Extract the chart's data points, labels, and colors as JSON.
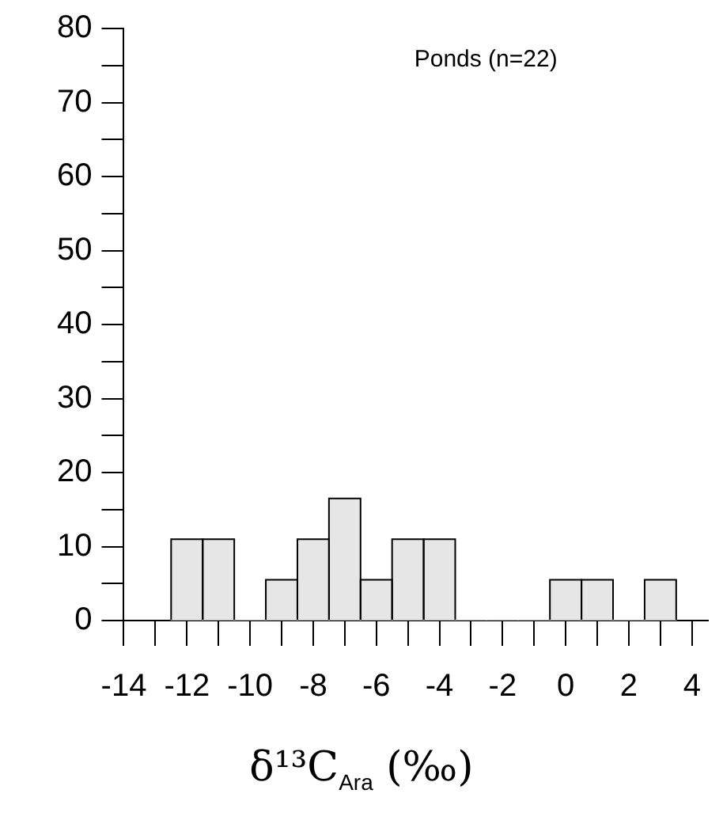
{
  "chart_data": {
    "type": "histogram",
    "bins": [
      -12.5,
      -11.5,
      -10.5,
      -9.5,
      -8.5,
      -7.5,
      -6.5,
      -5.5,
      -4.5,
      -3.5,
      -2.5,
      -1.5,
      -0.5,
      0.5,
      1.5,
      2.5,
      3.5
    ],
    "values": [
      11,
      11,
      0,
      5.5,
      11,
      16.5,
      5.5,
      11,
      11,
      0,
      0,
      0,
      5.5,
      5.5,
      0,
      5.5
    ],
    "color": "#e6e6e6",
    "xlim": [
      -14,
      4.5
    ],
    "xticks": [
      -14,
      {
        "value": -13,
        "label": null
      },
      -12,
      {
        "value": -11,
        "label": null
      },
      -10,
      {
        "value": -9,
        "label": null
      },
      -8,
      {
        "value": -7,
        "label": null
      },
      -6,
      {
        "value": -5,
        "label": null
      },
      -4,
      {
        "value": -3,
        "label": null
      },
      -2,
      {
        "value": -1,
        "label": null
      },
      0,
      {
        "value": 1,
        "label": null
      },
      2,
      {
        "value": 3,
        "label": null
      },
      4
    ],
    "ylim": [
      0,
      80
    ],
    "yticks": [
      0,
      {
        "value": 5,
        "label": null
      },
      10,
      {
        "value": 15,
        "label": null
      },
      20,
      {
        "value": 25,
        "label": null
      },
      30,
      {
        "value": 35,
        "label": null
      },
      40,
      {
        "value": 45,
        "label": null
      },
      50,
      {
        "value": 55,
        "label": null
      },
      60,
      {
        "value": 65,
        "label": null
      },
      70,
      {
        "value": 75,
        "label": null
      },
      80
    ],
    "xlabel": "δ¹³C$_{Ara}$ (‰)",
    "annotations": [
      "Ponds (n=22)"
    ],
    "grid": false,
    "legend": false
  }
}
